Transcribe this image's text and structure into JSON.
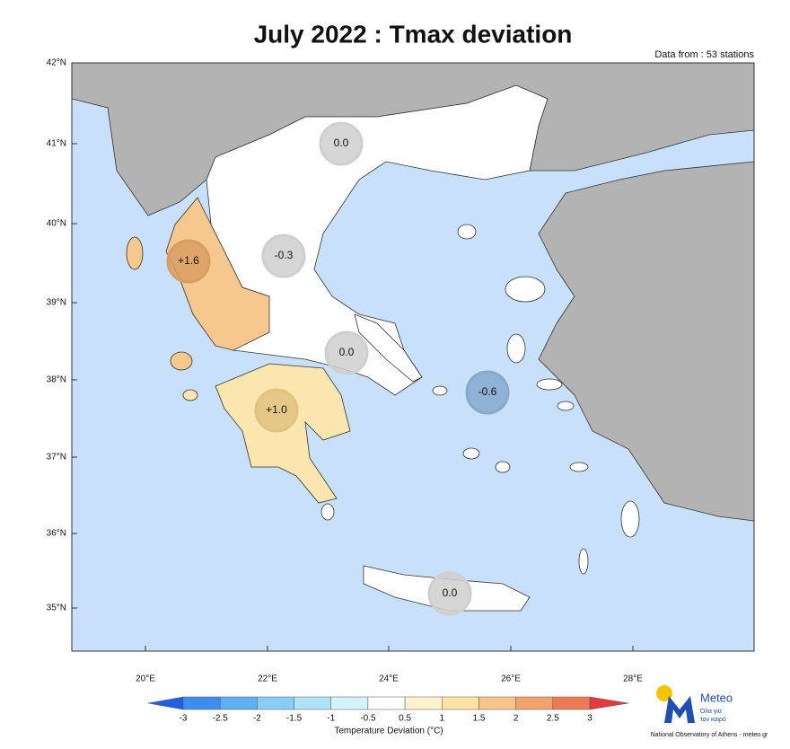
{
  "title": "July 2022 : Tmax deviation",
  "note": "Data from : 53 stations",
  "lat_labels": [
    "42°N",
    "41°N",
    "40°N",
    "39°N",
    "38°N",
    "37°N",
    "36°N",
    "35°N"
  ],
  "lon_labels": [
    "20°E",
    "22°E",
    "24°E",
    "26°E",
    "28°E"
  ],
  "stations": [
    {
      "label": "0.0",
      "color": "#cfcfcf"
    },
    {
      "label": "-0.3",
      "color": "#cfcfcf"
    },
    {
      "label": "+1.6",
      "color": "#d99d62"
    },
    {
      "label": "0.0",
      "color": "#cfcfcf"
    },
    {
      "label": "+1.0",
      "color": "#e2c27f"
    },
    {
      "label": "-0.6",
      "color": "#86a9cc"
    },
    {
      "label": "0.0",
      "color": "#cfcfcf"
    }
  ],
  "colorbar": {
    "title": "Temperature Deviation (°C)",
    "ticks": [
      -3,
      -2.5,
      -2,
      -1.5,
      -1,
      -0.5,
      0.5,
      1,
      1.5,
      2,
      2.5,
      3
    ],
    "colors": [
      "#3e8ef0",
      "#5fb0f2",
      "#87cdf5",
      "#aee3f7",
      "#d4f3f8",
      "#ffffff",
      "#fdf3cf",
      "#fbe3a3",
      "#f7c58a",
      "#f2a36c",
      "#ec7a55"
    ],
    "under_color": "#1f5fe0",
    "over_color": "#e33b3b"
  },
  "logo": {
    "name": "Meteo",
    "tagline_1": "Όλα για",
    "tagline_2": "τον καιρό"
  },
  "footer": "National Observatory of Athens - meteo.gr"
}
